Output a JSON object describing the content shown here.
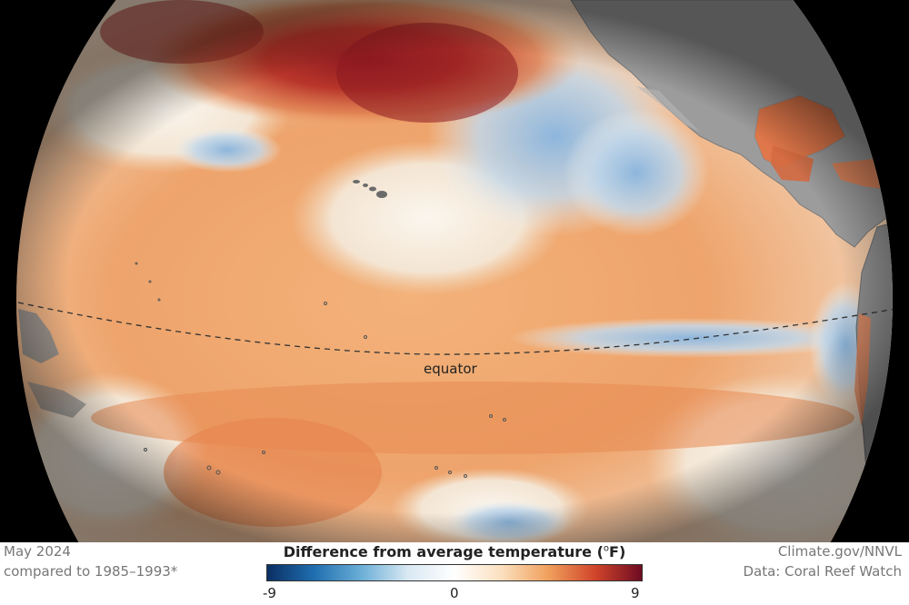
{
  "map": {
    "label_equator": "equator",
    "colors": {
      "ocean_warm_strong": "#8b1a22",
      "ocean_warm": "#e8935a",
      "ocean_neutral": "#f7f2ea",
      "ocean_cool": "#6f9fcf",
      "land": "#9c9c9c",
      "space": "#000000"
    }
  },
  "footer": {
    "date": "May 2024",
    "baseline": "compared to 1985–1993*",
    "legend_title": "Difference from average temperature (",
    "legend_unit_degree": "o",
    "legend_unit_close": "F)",
    "legend_min": "-9",
    "legend_mid": "0",
    "legend_max": "9",
    "credit": "Climate.gov/NNVL",
    "data_source": "Data: Coral Reef Watch",
    "colorbar_stops": [
      "#0b2f63",
      "#1f6eb0",
      "#6aaed6",
      "#d9e8f3",
      "#ffffff",
      "#fbe0bf",
      "#f0a05c",
      "#d1452b",
      "#6e0b22"
    ]
  }
}
